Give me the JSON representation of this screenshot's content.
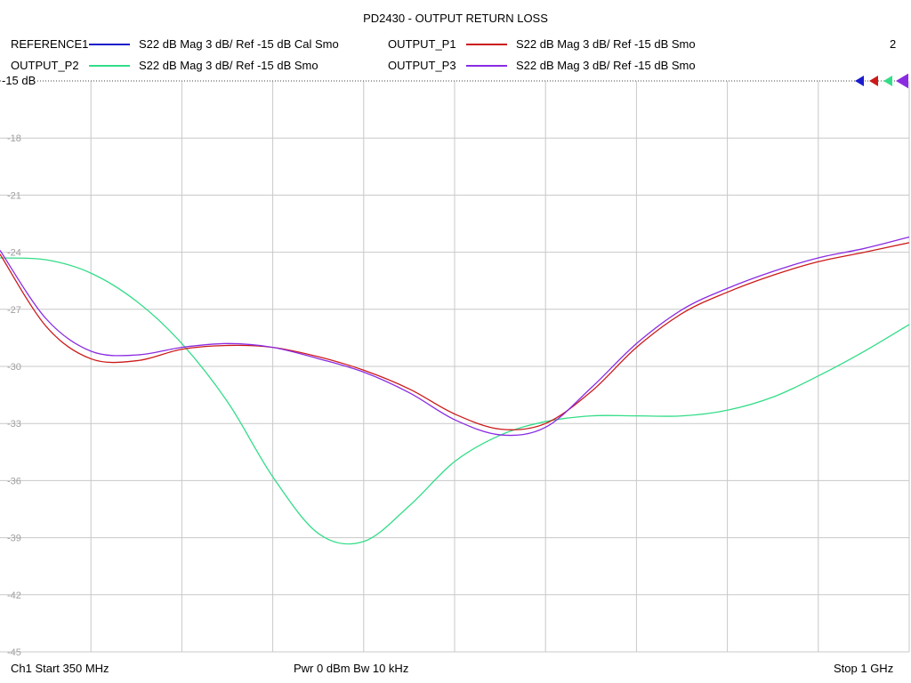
{
  "chart_data": {
    "type": "line",
    "title": "PD2430 - OUTPUT RETURN LOSS",
    "ylim": [
      -45,
      -15
    ],
    "y_ticks": [
      -15,
      -18,
      -21,
      -24,
      -27,
      -30,
      -33,
      -36,
      -39,
      -42,
      -45
    ],
    "y_tick_labels": [
      "-15",
      "-18",
      "-21",
      "-24",
      "-27",
      "-30",
      "-33",
      "-36",
      "-39",
      "-42",
      "-45"
    ],
    "ref_label": "-15 dB",
    "xlim": [
      350,
      1000
    ],
    "x_unit": "MHz",
    "grid": true,
    "channel_number": "2",
    "legend": [
      {
        "name": "REFERENCE1",
        "desc": "S22  dB Mag  3 dB/ Ref -15 dB  Cal Smo",
        "color": "#1a1acc"
      },
      {
        "name": "OUTPUT_P1",
        "desc": "S22  dB Mag  3 dB/ Ref -15 dB  Smo",
        "color": "#cc1a1a"
      },
      {
        "name": "OUTPUT_P2",
        "desc": "S22  dB Mag  3 dB/ Ref -15 dB  Smo",
        "color": "#33dd88"
      },
      {
        "name": "OUTPUT_P3",
        "desc": "S22  dB Mag  3 dB/ Ref -15 dB  Smo",
        "color": "#8a2be2"
      }
    ],
    "series": [
      {
        "name": "OUTPUT_P2",
        "color": "#33dd88",
        "x": [
          350,
          383,
          415,
          448,
          480,
          513,
          545,
          578,
          610,
          643,
          675,
          708,
          740,
          773,
          805,
          838,
          870,
          903,
          935,
          968,
          1000
        ],
        "y": [
          -24.3,
          -24.4,
          -25.1,
          -26.6,
          -28.8,
          -31.9,
          -35.8,
          -38.8,
          -39.2,
          -37.3,
          -35.0,
          -33.6,
          -32.9,
          -32.6,
          -32.6,
          -32.6,
          -32.3,
          -31.6,
          -30.5,
          -29.2,
          -27.8
        ]
      },
      {
        "name": "OUTPUT_P1",
        "color": "#cc1a1a",
        "x": [
          350,
          383,
          415,
          448,
          480,
          513,
          545,
          578,
          610,
          643,
          675,
          708,
          740,
          773,
          805,
          838,
          870,
          903,
          935,
          968,
          1000
        ],
        "y": [
          -24.1,
          -27.9,
          -29.6,
          -29.7,
          -29.1,
          -28.9,
          -29.0,
          -29.5,
          -30.2,
          -31.2,
          -32.5,
          -33.3,
          -33.0,
          -31.3,
          -29.0,
          -27.2,
          -26.1,
          -25.2,
          -24.5,
          -24.0,
          -23.5
        ]
      },
      {
        "name": "OUTPUT_P3",
        "color": "#8a2be2",
        "x": [
          350,
          383,
          415,
          448,
          480,
          513,
          545,
          578,
          610,
          643,
          675,
          708,
          740,
          773,
          805,
          838,
          870,
          903,
          935,
          968,
          1000
        ],
        "y": [
          -23.9,
          -27.5,
          -29.2,
          -29.4,
          -29.0,
          -28.8,
          -29.0,
          -29.6,
          -30.3,
          -31.4,
          -32.8,
          -33.6,
          -33.2,
          -31.1,
          -28.8,
          -27.0,
          -25.9,
          -25.0,
          -24.3,
          -23.8,
          -23.2
        ]
      }
    ]
  },
  "footer": {
    "start": "Ch1  Start  350 MHz",
    "middle": "Pwr  0 dBm  Bw  10 kHz",
    "stop": "Stop  1 GHz"
  }
}
